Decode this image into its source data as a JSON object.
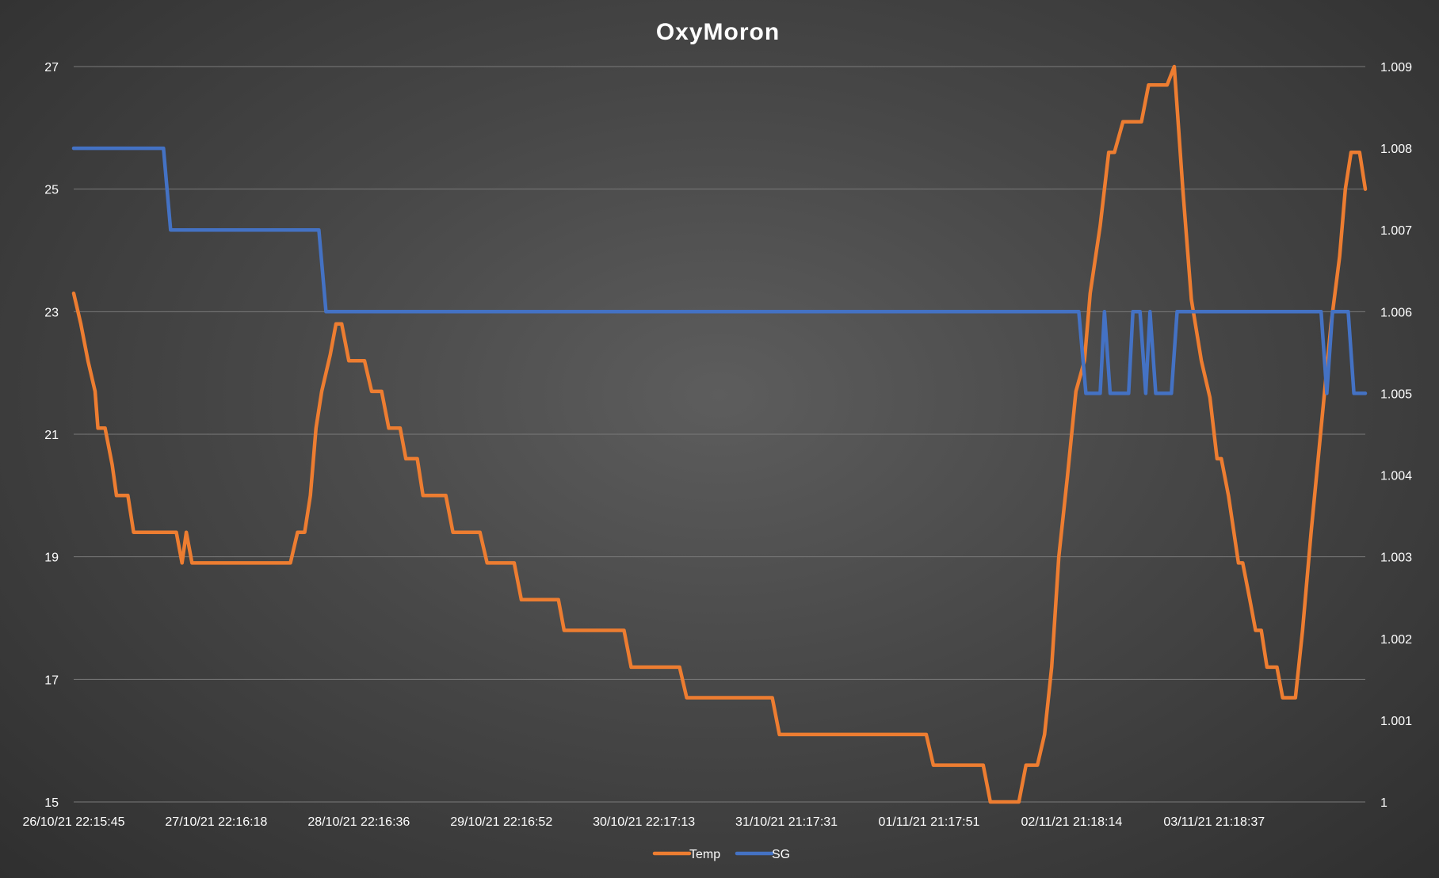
{
  "chart_data": {
    "type": "line",
    "title": "OxyMoron",
    "x": {
      "tick_labels": [
        "26/10/21 22:15:45",
        "27/10/21 22:16:18",
        "28/10/21 22:16:36",
        "29/10/21 22:16:52",
        "30/10/21 22:17:13",
        "31/10/21 21:17:31",
        "01/11/21 21:17:51",
        "02/11/21 21:18:14",
        "03/11/21 21:18:37"
      ],
      "range_days": [
        0,
        8.96
      ]
    },
    "y_left": {
      "ylim": [
        15,
        27
      ],
      "tick_labels": [
        "15",
        "17",
        "19",
        "21",
        "23",
        "25",
        "27"
      ]
    },
    "y_right": {
      "ylim": [
        1.0,
        1.009
      ],
      "tick_labels": [
        "1",
        "1.001",
        "1.002",
        "1.003",
        "1.004",
        "1.005",
        "1.006",
        "1.007",
        "1.008",
        "1.009"
      ]
    },
    "grid": true,
    "legend_position": "bottom",
    "series": [
      {
        "name": "Temp",
        "axis": "left",
        "color": "#ed7d31",
        "points": [
          [
            0.0,
            23.3
          ],
          [
            0.05,
            22.8
          ],
          [
            0.1,
            22.2
          ],
          [
            0.15,
            21.7
          ],
          [
            0.17,
            21.1
          ],
          [
            0.22,
            21.1
          ],
          [
            0.27,
            20.5
          ],
          [
            0.3,
            20.0
          ],
          [
            0.38,
            20.0
          ],
          [
            0.42,
            19.4
          ],
          [
            0.72,
            19.4
          ],
          [
            0.76,
            18.9
          ],
          [
            0.79,
            19.4
          ],
          [
            0.83,
            18.9
          ],
          [
            1.52,
            18.9
          ],
          [
            1.57,
            19.4
          ],
          [
            1.62,
            19.4
          ],
          [
            1.66,
            20.0
          ],
          [
            1.7,
            21.1
          ],
          [
            1.74,
            21.7
          ],
          [
            1.8,
            22.3
          ],
          [
            1.84,
            22.8
          ],
          [
            1.88,
            22.8
          ],
          [
            1.93,
            22.2
          ],
          [
            2.04,
            22.2
          ],
          [
            2.09,
            21.7
          ],
          [
            2.16,
            21.7
          ],
          [
            2.21,
            21.1
          ],
          [
            2.29,
            21.1
          ],
          [
            2.33,
            20.6
          ],
          [
            2.41,
            20.6
          ],
          [
            2.45,
            20.0
          ],
          [
            2.61,
            20.0
          ],
          [
            2.66,
            19.4
          ],
          [
            2.85,
            19.4
          ],
          [
            2.9,
            18.9
          ],
          [
            3.09,
            18.9
          ],
          [
            3.14,
            18.3
          ],
          [
            3.4,
            18.3
          ],
          [
            3.44,
            17.8
          ],
          [
            3.86,
            17.8
          ],
          [
            3.91,
            17.2
          ],
          [
            4.25,
            17.2
          ],
          [
            4.3,
            16.7
          ],
          [
            4.9,
            16.7
          ],
          [
            4.95,
            16.1
          ],
          [
            5.98,
            16.1
          ],
          [
            6.03,
            15.6
          ],
          [
            6.38,
            15.6
          ],
          [
            6.43,
            15.0
          ],
          [
            6.63,
            15.0
          ],
          [
            6.68,
            15.6
          ],
          [
            6.76,
            15.6
          ],
          [
            6.81,
            16.1
          ],
          [
            6.86,
            17.2
          ],
          [
            6.91,
            19.0
          ],
          [
            6.97,
            20.3
          ],
          [
            7.03,
            21.7
          ],
          [
            7.09,
            22.2
          ],
          [
            7.13,
            23.3
          ],
          [
            7.2,
            24.4
          ],
          [
            7.26,
            25.6
          ],
          [
            7.3,
            25.6
          ],
          [
            7.36,
            26.1
          ],
          [
            7.49,
            26.1
          ],
          [
            7.54,
            26.7
          ],
          [
            7.67,
            26.7
          ],
          [
            7.72,
            27.0
          ],
          [
            7.78,
            25.0
          ],
          [
            7.84,
            23.2
          ],
          [
            7.91,
            22.2
          ],
          [
            7.97,
            21.6
          ],
          [
            8.02,
            20.6
          ],
          [
            8.05,
            20.6
          ],
          [
            8.1,
            20.0
          ],
          [
            8.17,
            18.9
          ],
          [
            8.2,
            18.9
          ],
          [
            8.25,
            18.3
          ],
          [
            8.29,
            17.8
          ],
          [
            8.33,
            17.8
          ],
          [
            8.37,
            17.2
          ],
          [
            8.44,
            17.2
          ],
          [
            8.48,
            16.7
          ],
          [
            8.57,
            16.7
          ],
          [
            8.62,
            17.8
          ],
          [
            8.68,
            19.4
          ],
          [
            8.75,
            21.1
          ],
          [
            8.82,
            22.8
          ],
          [
            8.88,
            23.9
          ],
          [
            8.92,
            25.0
          ],
          [
            8.96,
            25.6
          ],
          [
            9.02,
            25.6
          ],
          [
            9.06,
            25.0
          ]
        ]
      },
      {
        "name": "SG",
        "axis": "right",
        "color": "#4472c4",
        "points": [
          [
            0.0,
            1.008
          ],
          [
            0.63,
            1.008
          ],
          [
            0.68,
            1.007
          ],
          [
            1.72,
            1.007
          ],
          [
            1.77,
            1.006
          ],
          [
            7.05,
            1.006
          ],
          [
            7.1,
            1.005
          ],
          [
            7.2,
            1.005
          ],
          [
            7.23,
            1.006
          ],
          [
            7.27,
            1.005
          ],
          [
            7.4,
            1.005
          ],
          [
            7.43,
            1.006
          ],
          [
            7.48,
            1.006
          ],
          [
            7.52,
            1.005
          ],
          [
            7.55,
            1.006
          ],
          [
            7.59,
            1.005
          ],
          [
            7.7,
            1.005
          ],
          [
            7.74,
            1.006
          ],
          [
            8.75,
            1.006
          ],
          [
            8.79,
            1.005
          ],
          [
            8.83,
            1.006
          ],
          [
            8.94,
            1.006
          ],
          [
            8.98,
            1.005
          ],
          [
            9.06,
            1.005
          ]
        ]
      }
    ]
  }
}
